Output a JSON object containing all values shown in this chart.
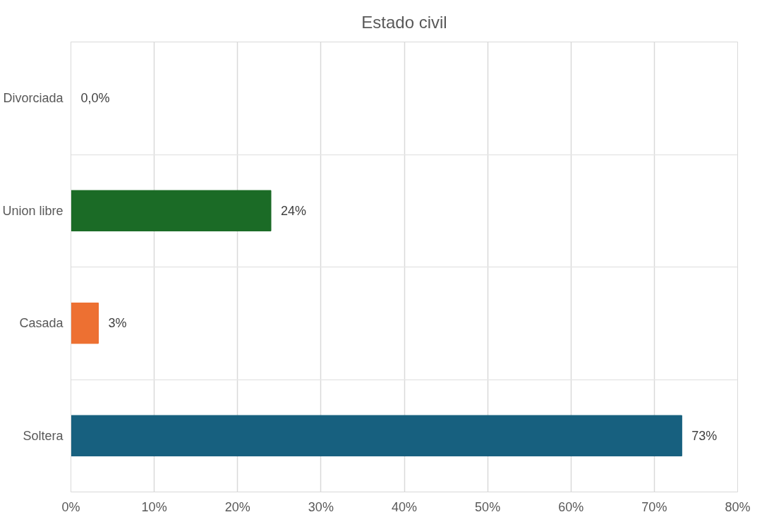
{
  "chart_data": {
    "type": "bar",
    "orientation": "horizontal",
    "title": "Estado civil",
    "categories": [
      "Divorciada",
      "Union libre",
      "Casada",
      "Soltera"
    ],
    "values": [
      0,
      24,
      3.3,
      73.3
    ],
    "value_labels": [
      "0,0%",
      "24%",
      "3%",
      "73%"
    ],
    "colors": [
      "#4472c4",
      "#1b6b26",
      "#ed7032",
      "#17607f"
    ],
    "xlim": [
      0,
      80
    ],
    "xticks": [
      {
        "value": 0,
        "label": "0%"
      },
      {
        "value": 10,
        "label": "10%"
      },
      {
        "value": 20,
        "label": "20%"
      },
      {
        "value": 30,
        "label": "30%"
      },
      {
        "value": 40,
        "label": "40%"
      },
      {
        "value": 50,
        "label": "50%"
      },
      {
        "value": 60,
        "label": "60%"
      },
      {
        "value": 70,
        "label": "70%"
      },
      {
        "value": 80,
        "label": "80%"
      }
    ],
    "grid": true
  }
}
